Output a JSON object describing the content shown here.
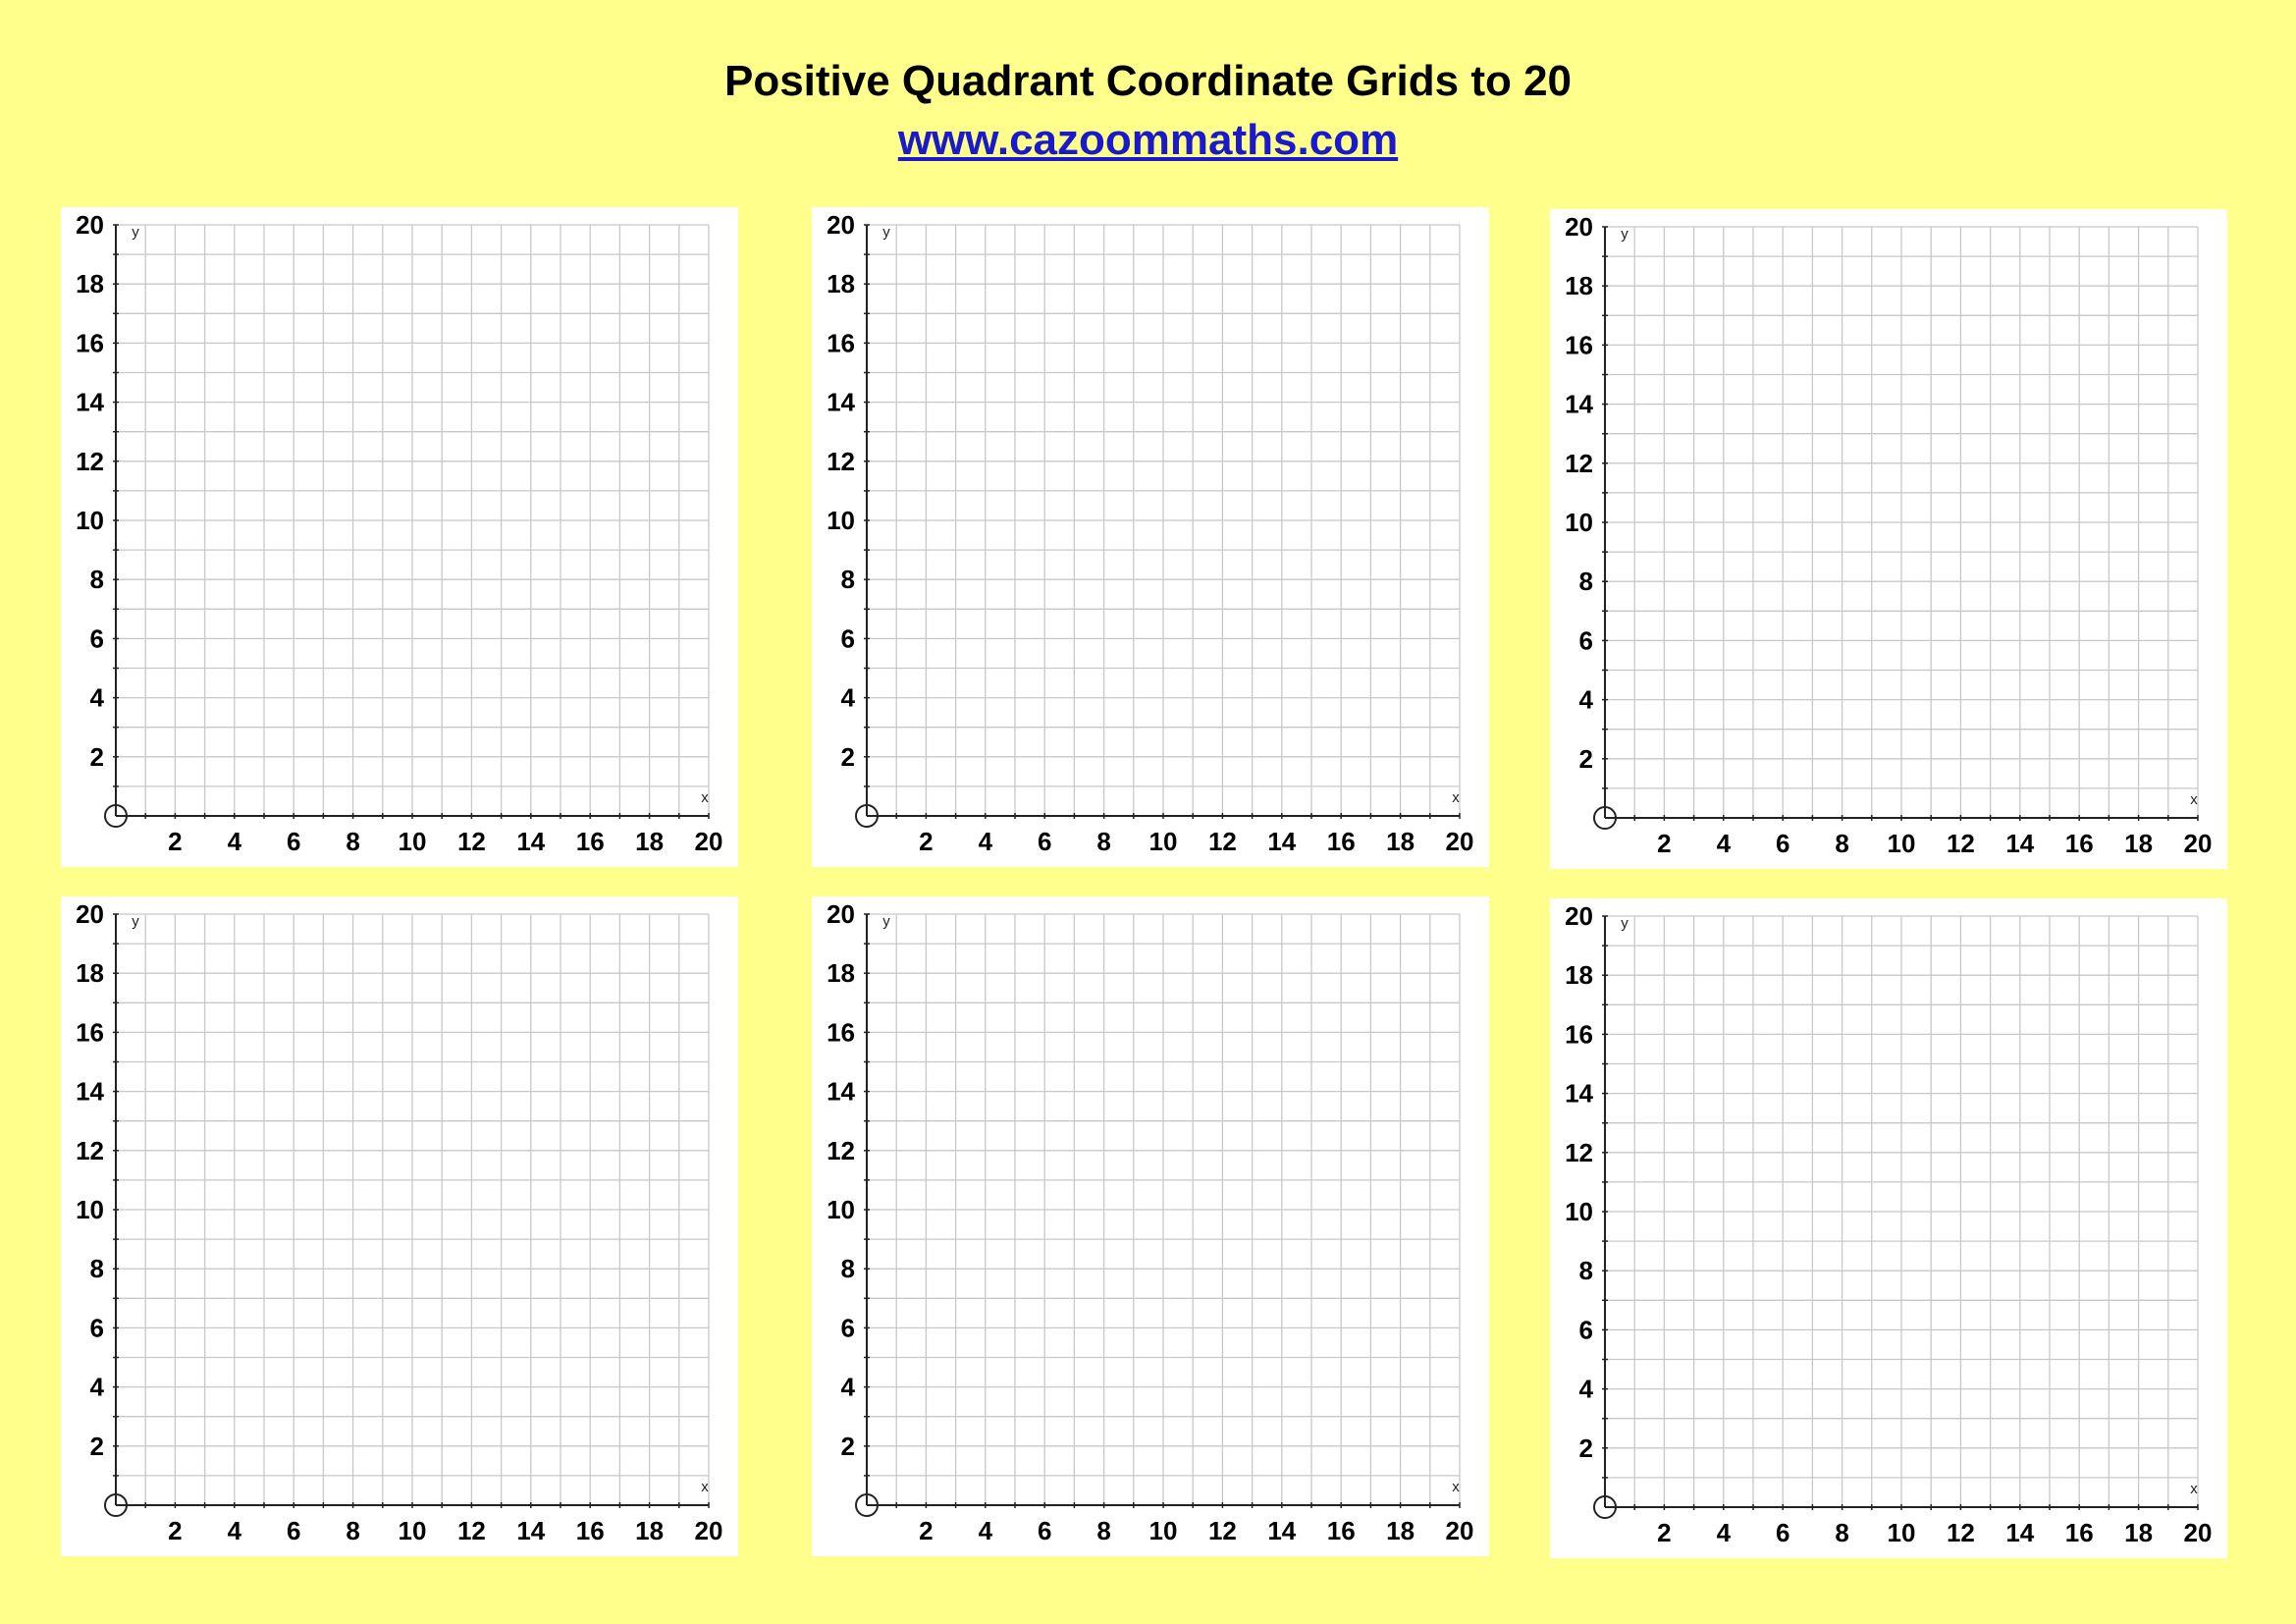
{
  "header": {
    "title": "Positive Quadrant Coordinate Grids to 20",
    "link_text": "www.cazoommaths.com"
  },
  "colors": {
    "background": "#ffff8c",
    "panel": "#ffffff",
    "gridline": "#c8c8c8",
    "axis": "#222222",
    "link": "#1a1acc"
  },
  "chart_data": [
    {
      "type": "scatter",
      "title": "",
      "xlabel": "x",
      "ylabel": "y",
      "xlim": [
        0,
        20
      ],
      "ylim": [
        0,
        20
      ],
      "grid": true,
      "x_ticks": [
        2,
        4,
        6,
        8,
        10,
        12,
        14,
        16,
        18,
        20
      ],
      "y_ticks": [
        2,
        4,
        6,
        8,
        10,
        12,
        14,
        16,
        18,
        20
      ],
      "points": []
    },
    {
      "type": "scatter",
      "title": "",
      "xlabel": "x",
      "ylabel": "y",
      "xlim": [
        0,
        20
      ],
      "ylim": [
        0,
        20
      ],
      "grid": true,
      "x_ticks": [
        2,
        4,
        6,
        8,
        10,
        12,
        14,
        16,
        18,
        20
      ],
      "y_ticks": [
        2,
        4,
        6,
        8,
        10,
        12,
        14,
        16,
        18,
        20
      ],
      "points": []
    },
    {
      "type": "scatter",
      "title": "",
      "xlabel": "x",
      "ylabel": "y",
      "xlim": [
        0,
        20
      ],
      "ylim": [
        0,
        20
      ],
      "grid": true,
      "x_ticks": [
        2,
        4,
        6,
        8,
        10,
        12,
        14,
        16,
        18,
        20
      ],
      "y_ticks": [
        2,
        4,
        6,
        8,
        10,
        12,
        14,
        16,
        18,
        20
      ],
      "points": []
    },
    {
      "type": "scatter",
      "title": "",
      "xlabel": "x",
      "ylabel": "y",
      "xlim": [
        0,
        20
      ],
      "ylim": [
        0,
        20
      ],
      "grid": true,
      "x_ticks": [
        2,
        4,
        6,
        8,
        10,
        12,
        14,
        16,
        18,
        20
      ],
      "y_ticks": [
        2,
        4,
        6,
        8,
        10,
        12,
        14,
        16,
        18,
        20
      ],
      "points": []
    },
    {
      "type": "scatter",
      "title": "",
      "xlabel": "x",
      "ylabel": "y",
      "xlim": [
        0,
        20
      ],
      "ylim": [
        0,
        20
      ],
      "grid": true,
      "x_ticks": [
        2,
        4,
        6,
        8,
        10,
        12,
        14,
        16,
        18,
        20
      ],
      "y_ticks": [
        2,
        4,
        6,
        8,
        10,
        12,
        14,
        16,
        18,
        20
      ],
      "points": []
    },
    {
      "type": "scatter",
      "title": "",
      "xlabel": "x",
      "ylabel": "y",
      "xlim": [
        0,
        20
      ],
      "ylim": [
        0,
        20
      ],
      "grid": true,
      "x_ticks": [
        2,
        4,
        6,
        8,
        10,
        12,
        14,
        16,
        18,
        20
      ],
      "y_ticks": [
        2,
        4,
        6,
        8,
        10,
        12,
        14,
        16,
        18,
        20
      ],
      "points": []
    }
  ]
}
